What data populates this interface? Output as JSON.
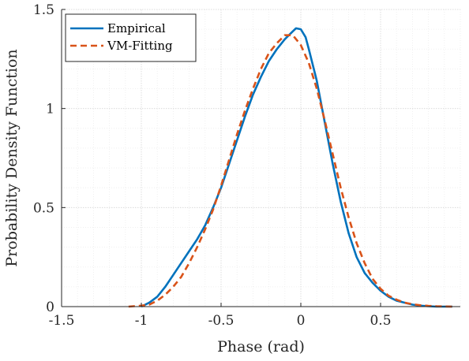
{
  "chart_data": {
    "type": "line",
    "xlabel": "Phase (rad)",
    "ylabel": "Probability Density Function",
    "xlim": [
      -1.5,
      1.0
    ],
    "ylim": [
      0,
      1.5
    ],
    "xticks": [
      -1.5,
      -1,
      -0.5,
      0,
      0.5
    ],
    "xtick_labels": [
      "-1.5",
      "-1",
      "-0.5",
      "0",
      "0.5"
    ],
    "yticks": [
      0,
      0.5,
      1,
      1.5
    ],
    "ytick_labels": [
      "0",
      "0.5",
      "1",
      "1.5"
    ],
    "grid": true,
    "minor_grid": true,
    "legend_position": "top-left",
    "series": [
      {
        "name": "Empirical",
        "color": "#0072BD",
        "style": "solid",
        "x": [
          -1.0,
          -0.95,
          -0.9,
          -0.85,
          -0.8,
          -0.75,
          -0.7,
          -0.65,
          -0.6,
          -0.55,
          -0.5,
          -0.45,
          -0.4,
          -0.35,
          -0.3,
          -0.25,
          -0.2,
          -0.15,
          -0.1,
          -0.05,
          -0.03,
          0.0,
          0.03,
          0.05,
          0.1,
          0.15,
          0.2,
          0.25,
          0.3,
          0.35,
          0.4,
          0.45,
          0.5,
          0.55,
          0.6,
          0.65,
          0.7,
          0.75,
          0.8,
          0.85,
          0.9,
          0.95
        ],
        "y": [
          0.0,
          0.02,
          0.05,
          0.1,
          0.16,
          0.22,
          0.28,
          0.34,
          0.41,
          0.5,
          0.6,
          0.72,
          0.84,
          0.96,
          1.07,
          1.16,
          1.24,
          1.3,
          1.35,
          1.39,
          1.405,
          1.4,
          1.36,
          1.3,
          1.14,
          0.93,
          0.72,
          0.53,
          0.37,
          0.25,
          0.17,
          0.12,
          0.08,
          0.05,
          0.03,
          0.02,
          0.01,
          0.005,
          0.002,
          0.0,
          0.0,
          0.0
        ]
      },
      {
        "name": "VM-Fitting",
        "color": "#D95319",
        "style": "dashed",
        "x": [
          -1.08,
          -1.0,
          -0.95,
          -0.9,
          -0.85,
          -0.8,
          -0.75,
          -0.7,
          -0.65,
          -0.6,
          -0.55,
          -0.5,
          -0.45,
          -0.4,
          -0.35,
          -0.3,
          -0.25,
          -0.2,
          -0.15,
          -0.1,
          -0.05,
          0.0,
          0.05,
          0.1,
          0.15,
          0.2,
          0.25,
          0.3,
          0.35,
          0.4,
          0.45,
          0.5,
          0.55,
          0.6,
          0.65,
          0.7,
          0.75,
          0.8,
          0.85,
          0.9,
          0.95
        ],
        "y": [
          0.0,
          0.005,
          0.01,
          0.03,
          0.06,
          0.1,
          0.15,
          0.22,
          0.3,
          0.39,
          0.49,
          0.61,
          0.74,
          0.87,
          0.99,
          1.1,
          1.2,
          1.28,
          1.33,
          1.37,
          1.37,
          1.32,
          1.23,
          1.1,
          0.94,
          0.77,
          0.6,
          0.45,
          0.32,
          0.22,
          0.14,
          0.09,
          0.055,
          0.035,
          0.02,
          0.012,
          0.007,
          0.004,
          0.002,
          0.001,
          0.0
        ]
      }
    ]
  }
}
